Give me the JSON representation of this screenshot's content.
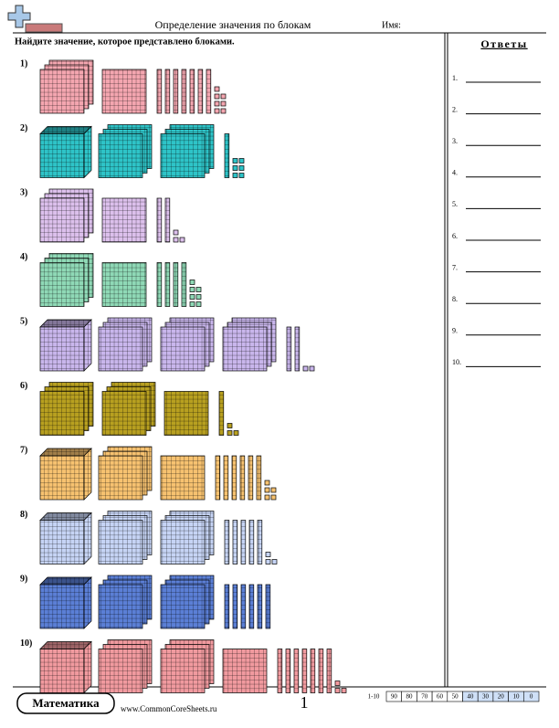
{
  "header": {
    "title": "Определение значения по блокам",
    "name_label": "Имя:"
  },
  "instructions": "Найдите значение, которое представлено блоками.",
  "problems": [
    {
      "label": "1)",
      "color": "#f4a6b0",
      "thousands": 0,
      "hundreds": 4,
      "tens": 7,
      "ones": 7
    },
    {
      "label": "2)",
      "color": "#2ec4c8",
      "thousands": 1,
      "hundreds": 6,
      "tens": 1,
      "ones": 6
    },
    {
      "label": "3)",
      "color": "#dcc0ec",
      "thousands": 0,
      "hundreds": 4,
      "tens": 2,
      "ones": 3
    },
    {
      "label": "4)",
      "color": "#8fd9b6",
      "thousands": 0,
      "hundreds": 4,
      "tens": 4,
      "ones": 7
    },
    {
      "label": "5)",
      "color": "#c9b6ec",
      "thousands": 1,
      "hundreds": 9,
      "tens": 2,
      "ones": 2
    },
    {
      "label": "6)",
      "color": "#b8a020",
      "thousands": 0,
      "hundreds": 7,
      "tens": 1,
      "ones": 3
    },
    {
      "label": "7)",
      "color": "#f7c270",
      "thousands": 1,
      "hundreds": 4,
      "tens": 6,
      "ones": 5
    },
    {
      "label": "8)",
      "color": "#c6d4f5",
      "thousands": 1,
      "hundreds": 6,
      "tens": 5,
      "ones": 3
    },
    {
      "label": "9)",
      "color": "#5b7fd6",
      "thousands": 1,
      "hundreds": 6,
      "tens": 6,
      "ones": 0
    },
    {
      "label": "10)",
      "color": "#f19a9f",
      "thousands": 1,
      "hundreds": 7,
      "tens": 7,
      "ones": 3
    }
  ],
  "answers": {
    "title": "Ответы",
    "items": [
      "1.",
      "2.",
      "3.",
      "4.",
      "5.",
      "6.",
      "7.",
      "8.",
      "9.",
      "10."
    ]
  },
  "footer": {
    "brand": "Математика",
    "site": "www.CommonCoreSheets.ru",
    "page": "1",
    "score": [
      "1-10",
      "90",
      "80",
      "70",
      "60",
      "50",
      "40",
      "30",
      "20",
      "10",
      "0"
    ]
  }
}
